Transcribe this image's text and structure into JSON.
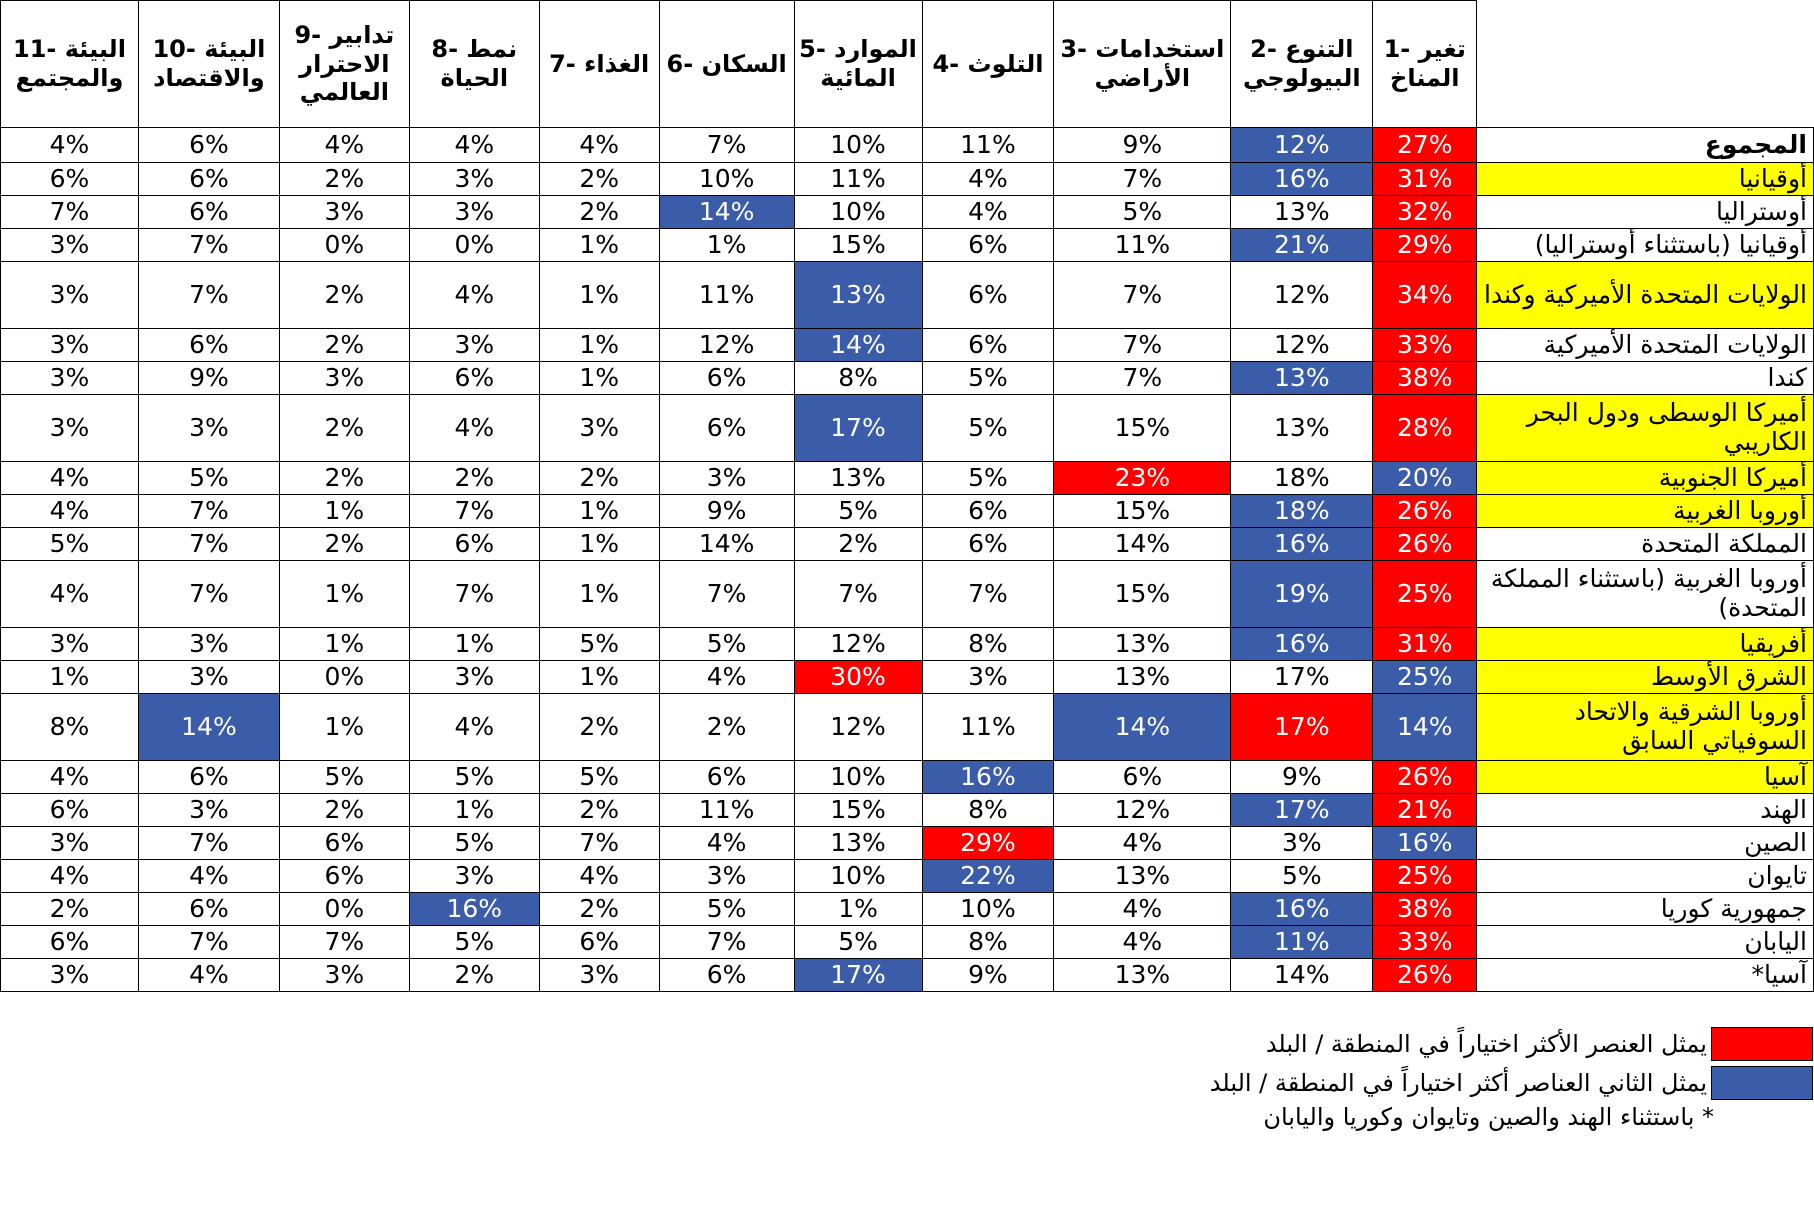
{
  "colors": {
    "red": "#ff0000",
    "blue": "#3b5ca8",
    "yellow": "#ffff00"
  },
  "columns": [
    "11- البيئة والمجتمع",
    "10- البيئة والاقتصاد",
    "9- تدابير الاحترار العالمي",
    "8- نمط الحياة",
    "7- الغذاء",
    "6- السكان",
    "5- الموارد المائية",
    "4- التلوث",
    "3- استخدامات الأراضي",
    "2- التنوع البيولوجي",
    "1- تغير المناخ"
  ],
  "rows": [
    {
      "label": "المجموع",
      "total": true,
      "yellow": false,
      "tall": false,
      "values": [
        "4%",
        "6%",
        "4%",
        "4%",
        "4%",
        "7%",
        "10%",
        "11%",
        "9%",
        "12%",
        "27%"
      ],
      "hl": [
        "",
        "",
        "",
        "",
        "",
        "",
        "",
        "",
        "",
        "b",
        "r"
      ]
    },
    {
      "label": "أوقيانيا",
      "yellow": true,
      "tall": false,
      "values": [
        "6%",
        "6%",
        "2%",
        "3%",
        "2%",
        "10%",
        "11%",
        "4%",
        "7%",
        "16%",
        "31%"
      ],
      "hl": [
        "",
        "",
        "",
        "",
        "",
        "",
        "",
        "",
        "",
        "b",
        "r"
      ]
    },
    {
      "label": "أوستراليا",
      "yellow": false,
      "tall": false,
      "values": [
        "7%",
        "6%",
        "3%",
        "3%",
        "2%",
        "14%",
        "10%",
        "4%",
        "5%",
        "13%",
        "32%"
      ],
      "hl": [
        "",
        "",
        "",
        "",
        "",
        "b",
        "",
        "",
        "",
        "",
        "r"
      ]
    },
    {
      "label": "أوقيانيا (باستثناء أوستراليا)",
      "yellow": false,
      "tall": false,
      "values": [
        "3%",
        "7%",
        "0%",
        "0%",
        "1%",
        "1%",
        "15%",
        "6%",
        "11%",
        "21%",
        "29%"
      ],
      "hl": [
        "",
        "",
        "",
        "",
        "",
        "",
        "",
        "",
        "",
        "b",
        "r"
      ]
    },
    {
      "label": "الولايات المتحدة الأميركية وكندا",
      "yellow": true,
      "tall": true,
      "values": [
        "3%",
        "7%",
        "2%",
        "4%",
        "1%",
        "11%",
        "13%",
        "6%",
        "7%",
        "12%",
        "34%"
      ],
      "hl": [
        "",
        "",
        "",
        "",
        "",
        "",
        "b",
        "",
        "",
        "",
        "r"
      ]
    },
    {
      "label": "الولايات المتحدة الأميركية",
      "yellow": false,
      "tall": false,
      "values": [
        "3%",
        "6%",
        "2%",
        "3%",
        "1%",
        "12%",
        "14%",
        "6%",
        "7%",
        "12%",
        "33%"
      ],
      "hl": [
        "",
        "",
        "",
        "",
        "",
        "",
        "b",
        "",
        "",
        "",
        "r"
      ]
    },
    {
      "label": "كندا",
      "yellow": false,
      "tall": false,
      "values": [
        "3%",
        "9%",
        "3%",
        "6%",
        "1%",
        "6%",
        "8%",
        "5%",
        "7%",
        "13%",
        "38%"
      ],
      "hl": [
        "",
        "",
        "",
        "",
        "",
        "",
        "",
        "",
        "",
        "b",
        "r"
      ]
    },
    {
      "label": "أميركا الوسطى ودول البحر الكاريبي",
      "yellow": true,
      "tall": true,
      "values": [
        "3%",
        "3%",
        "2%",
        "4%",
        "3%",
        "6%",
        "17%",
        "5%",
        "15%",
        "13%",
        "28%"
      ],
      "hl": [
        "",
        "",
        "",
        "",
        "",
        "",
        "b",
        "",
        "",
        "",
        "r"
      ]
    },
    {
      "label": "أميركا الجنوبية",
      "yellow": true,
      "tall": false,
      "values": [
        "4%",
        "5%",
        "2%",
        "2%",
        "2%",
        "3%",
        "13%",
        "5%",
        "23%",
        "18%",
        "20%"
      ],
      "hl": [
        "",
        "",
        "",
        "",
        "",
        "",
        "",
        "",
        "r",
        "",
        "b"
      ]
    },
    {
      "label": "أوروبا الغربية",
      "yellow": true,
      "tall": false,
      "values": [
        "4%",
        "7%",
        "1%",
        "7%",
        "1%",
        "9%",
        "5%",
        "6%",
        "15%",
        "18%",
        "26%"
      ],
      "hl": [
        "",
        "",
        "",
        "",
        "",
        "",
        "",
        "",
        "",
        "b",
        "r"
      ]
    },
    {
      "label": "المملكة المتحدة",
      "yellow": false,
      "tall": false,
      "values": [
        "5%",
        "7%",
        "2%",
        "6%",
        "1%",
        "14%",
        "2%",
        "6%",
        "14%",
        "16%",
        "26%"
      ],
      "hl": [
        "",
        "",
        "",
        "",
        "",
        "",
        "",
        "",
        "",
        "b",
        "r"
      ]
    },
    {
      "label": "أوروبا الغربية (باستثناء المملكة المتحدة)",
      "yellow": false,
      "tall": true,
      "values": [
        "4%",
        "7%",
        "1%",
        "7%",
        "1%",
        "7%",
        "7%",
        "7%",
        "15%",
        "19%",
        "25%"
      ],
      "hl": [
        "",
        "",
        "",
        "",
        "",
        "",
        "",
        "",
        "",
        "b",
        "r"
      ]
    },
    {
      "label": "أفريقيا",
      "yellow": true,
      "tall": false,
      "values": [
        "3%",
        "3%",
        "1%",
        "1%",
        "5%",
        "5%",
        "12%",
        "8%",
        "13%",
        "16%",
        "31%"
      ],
      "hl": [
        "",
        "",
        "",
        "",
        "",
        "",
        "",
        "",
        "",
        "b",
        "r"
      ]
    },
    {
      "label": "الشرق الأوسط",
      "yellow": true,
      "tall": false,
      "values": [
        "1%",
        "3%",
        "0%",
        "3%",
        "1%",
        "4%",
        "30%",
        "3%",
        "13%",
        "17%",
        "25%"
      ],
      "hl": [
        "",
        "",
        "",
        "",
        "",
        "",
        "r",
        "",
        "",
        "",
        "b"
      ]
    },
    {
      "label": "أوروبا الشرقية والاتحاد السوفياتي السابق",
      "yellow": true,
      "tall": true,
      "values": [
        "8%",
        "14%",
        "1%",
        "4%",
        "2%",
        "2%",
        "12%",
        "11%",
        "14%",
        "17%",
        "14%"
      ],
      "hl": [
        "",
        "b",
        "",
        "",
        "",
        "",
        "",
        "",
        "b",
        "r",
        "b"
      ]
    },
    {
      "label": "آسيا",
      "yellow": true,
      "tall": false,
      "values": [
        "4%",
        "6%",
        "5%",
        "5%",
        "5%",
        "6%",
        "10%",
        "16%",
        "6%",
        "9%",
        "26%"
      ],
      "hl": [
        "",
        "",
        "",
        "",
        "",
        "",
        "",
        "b",
        "",
        "",
        "r"
      ]
    },
    {
      "label": "الهند",
      "yellow": false,
      "tall": false,
      "values": [
        "6%",
        "3%",
        "2%",
        "1%",
        "2%",
        "11%",
        "15%",
        "8%",
        "12%",
        "17%",
        "21%"
      ],
      "hl": [
        "",
        "",
        "",
        "",
        "",
        "",
        "",
        "",
        "",
        "b",
        "r"
      ]
    },
    {
      "label": "الصين",
      "yellow": false,
      "tall": false,
      "values": [
        "3%",
        "7%",
        "6%",
        "5%",
        "7%",
        "4%",
        "13%",
        "29%",
        "4%",
        "3%",
        "16%"
      ],
      "hl": [
        "",
        "",
        "",
        "",
        "",
        "",
        "",
        "r",
        "",
        "",
        "b"
      ]
    },
    {
      "label": "تايوان",
      "yellow": false,
      "tall": false,
      "values": [
        "4%",
        "4%",
        "6%",
        "3%",
        "4%",
        "3%",
        "10%",
        "22%",
        "13%",
        "5%",
        "25%"
      ],
      "hl": [
        "",
        "",
        "",
        "",
        "",
        "",
        "",
        "b",
        "",
        "",
        "r"
      ]
    },
    {
      "label": "جمهورية كوريا",
      "yellow": false,
      "tall": false,
      "values": [
        "2%",
        "6%",
        "0%",
        "16%",
        "2%",
        "5%",
        "1%",
        "10%",
        "4%",
        "16%",
        "38%"
      ],
      "hl": [
        "",
        "",
        "",
        "b",
        "",
        "",
        "",
        "",
        "",
        "b",
        "r"
      ]
    },
    {
      "label": "اليابان",
      "yellow": false,
      "tall": false,
      "values": [
        "6%",
        "7%",
        "7%",
        "5%",
        "6%",
        "7%",
        "5%",
        "8%",
        "4%",
        "11%",
        "33%"
      ],
      "hl": [
        "",
        "",
        "",
        "",
        "",
        "",
        "",
        "",
        "",
        "b",
        "r"
      ]
    },
    {
      "label": "آسيا*",
      "yellow": false,
      "tall": false,
      "values": [
        "3%",
        "4%",
        "3%",
        "2%",
        "3%",
        "6%",
        "17%",
        "9%",
        "13%",
        "14%",
        "26%"
      ],
      "hl": [
        "",
        "",
        "",
        "",
        "",
        "",
        "b",
        "",
        "",
        "",
        "r"
      ]
    }
  ],
  "legend": {
    "red_text": "يمثل العنصر الأكثر اختياراً  في المنطقة / البلد",
    "blue_text": "يمثل الثاني العناصر أكثر اختياراً في المنطقة / البلد"
  },
  "footnote": "* باستثناء الهند والصين وتايوان وكوريا واليابان"
}
